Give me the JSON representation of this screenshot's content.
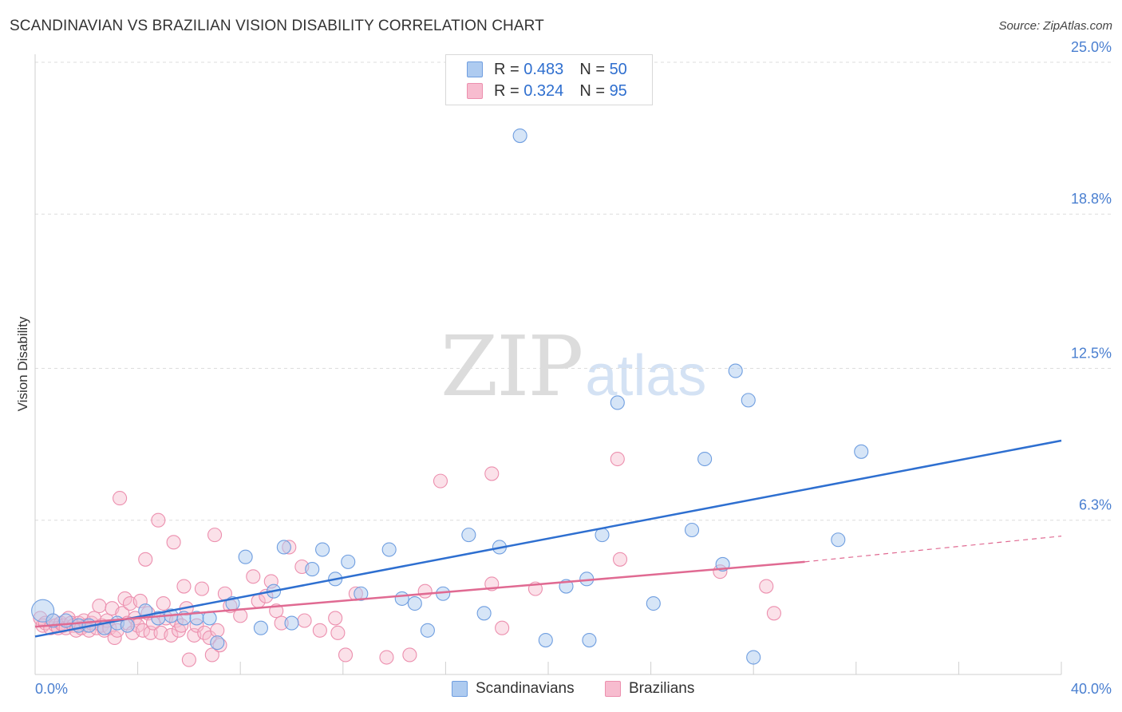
{
  "header": {
    "title": "SCANDINAVIAN VS BRAZILIAN VISION DISABILITY CORRELATION CHART",
    "source": "Source: ZipAtlas.com"
  },
  "watermark": {
    "zip": "ZIP",
    "atlas": "atlas"
  },
  "legend": {
    "rows": [
      {
        "r_label": "R =",
        "r_value": "0.483",
        "n_label": "N =",
        "n_value": "50"
      },
      {
        "r_label": "R =",
        "r_value": "0.324",
        "n_label": "N =",
        "n_value": "95"
      }
    ]
  },
  "bottom_legend": {
    "scandinavians": "Scandinavians",
    "brazilians": "Brazilians"
  },
  "colors": {
    "scandinavian_fill": "#aecbf0",
    "scandinavian_stroke": "#6f9ee0",
    "scandinavian_line": "#2e6fd0",
    "brazilian_fill": "#f7bccf",
    "brazilian_stroke": "#ec8fae",
    "brazilian_line": "#e06a92",
    "tick_text": "#4a7fd0"
  },
  "chart_data": {
    "type": "scatter",
    "title": "SCANDINAVIAN VS BRAZILIAN VISION DISABILITY CORRELATION CHART",
    "xlabel": "",
    "ylabel": "Vision Disability",
    "xlim": [
      0,
      40
    ],
    "ylim": [
      0,
      25
    ],
    "x_tick_labels": [
      "0.0%",
      "40.0%"
    ],
    "y_ticks": [
      {
        "value": 6.3,
        "label": "6.3%"
      },
      {
        "value": 12.5,
        "label": "12.5%"
      },
      {
        "value": 18.8,
        "label": "18.8%"
      },
      {
        "value": 25.0,
        "label": "25.0%"
      }
    ],
    "series": [
      {
        "name": "Scandinavians",
        "r": 0.483,
        "n": 50,
        "trend": {
          "x": [
            0,
            40
          ],
          "y": [
            1.55,
            9.55
          ]
        },
        "points": [
          [
            0.3,
            2.6
          ],
          [
            0.7,
            2.2
          ],
          [
            1.2,
            2.2
          ],
          [
            1.7,
            2.0
          ],
          [
            2.1,
            2.0
          ],
          [
            2.7,
            1.9
          ],
          [
            3.2,
            2.1
          ],
          [
            3.6,
            2.0
          ],
          [
            4.3,
            2.6
          ],
          [
            4.8,
            2.3
          ],
          [
            5.3,
            2.4
          ],
          [
            5.8,
            2.3
          ],
          [
            6.3,
            2.3
          ],
          [
            6.8,
            2.3
          ],
          [
            7.1,
            1.3
          ],
          [
            7.7,
            2.9
          ],
          [
            8.2,
            4.8
          ],
          [
            8.8,
            1.9
          ],
          [
            9.3,
            3.4
          ],
          [
            9.7,
            5.2
          ],
          [
            10.0,
            2.1
          ],
          [
            10.8,
            4.3
          ],
          [
            11.2,
            5.1
          ],
          [
            11.7,
            3.9
          ],
          [
            12.2,
            4.6
          ],
          [
            12.7,
            3.3
          ],
          [
            13.8,
            5.1
          ],
          [
            14.3,
            3.1
          ],
          [
            14.8,
            2.9
          ],
          [
            15.3,
            1.8
          ],
          [
            15.9,
            3.3
          ],
          [
            16.9,
            5.7
          ],
          [
            17.5,
            2.5
          ],
          [
            18.1,
            5.2
          ],
          [
            18.9,
            22.0
          ],
          [
            19.9,
            1.4
          ],
          [
            20.7,
            3.6
          ],
          [
            21.5,
            3.9
          ],
          [
            21.6,
            1.4
          ],
          [
            22.1,
            5.7
          ],
          [
            22.7,
            11.1
          ],
          [
            24.1,
            2.9
          ],
          [
            25.6,
            5.9
          ],
          [
            26.1,
            8.8
          ],
          [
            26.8,
            4.5
          ],
          [
            27.3,
            12.4
          ],
          [
            27.8,
            11.2
          ],
          [
            28.0,
            0.7
          ],
          [
            31.3,
            5.5
          ],
          [
            32.2,
            9.1
          ]
        ]
      },
      {
        "name": "Brazilians",
        "r": 0.324,
        "n": 95,
        "trend": {
          "x": [
            0,
            30
          ],
          "y": [
            1.95,
            4.6
          ]
        },
        "trend_dashed": {
          "x": [
            30,
            40
          ],
          "y": [
            4.6,
            5.65
          ]
        },
        "points": [
          [
            0.2,
            2.3
          ],
          [
            0.3,
            2.0
          ],
          [
            0.4,
            2.1
          ],
          [
            0.6,
            1.9
          ],
          [
            0.7,
            2.2
          ],
          [
            0.8,
            2.0
          ],
          [
            0.9,
            1.9
          ],
          [
            1.0,
            2.1
          ],
          [
            1.1,
            2.0
          ],
          [
            1.2,
            1.9
          ],
          [
            1.3,
            2.3
          ],
          [
            1.4,
            2.1
          ],
          [
            1.5,
            2.0
          ],
          [
            1.6,
            1.8
          ],
          [
            1.7,
            2.1
          ],
          [
            1.8,
            1.9
          ],
          [
            1.9,
            2.2
          ],
          [
            2.0,
            2.0
          ],
          [
            2.1,
            1.8
          ],
          [
            2.2,
            2.1
          ],
          [
            2.3,
            2.3
          ],
          [
            2.4,
            1.9
          ],
          [
            2.5,
            2.8
          ],
          [
            2.6,
            2.0
          ],
          [
            2.7,
            1.8
          ],
          [
            2.8,
            2.2
          ],
          [
            2.9,
            1.9
          ],
          [
            3.0,
            2.7
          ],
          [
            3.1,
            1.5
          ],
          [
            3.2,
            1.8
          ],
          [
            3.3,
            7.2
          ],
          [
            3.4,
            2.5
          ],
          [
            3.5,
            3.1
          ],
          [
            3.6,
            2.1
          ],
          [
            3.7,
            2.9
          ],
          [
            3.8,
            1.7
          ],
          [
            3.9,
            2.3
          ],
          [
            4.0,
            2.0
          ],
          [
            4.1,
            3.0
          ],
          [
            4.2,
            1.8
          ],
          [
            4.3,
            4.7
          ],
          [
            4.4,
            2.5
          ],
          [
            4.5,
            1.7
          ],
          [
            4.6,
            2.1
          ],
          [
            4.8,
            6.3
          ],
          [
            4.9,
            1.7
          ],
          [
            5.0,
            2.9
          ],
          [
            5.1,
            2.3
          ],
          [
            5.3,
            1.6
          ],
          [
            5.4,
            5.4
          ],
          [
            5.5,
            2.2
          ],
          [
            5.6,
            1.8
          ],
          [
            5.7,
            2.0
          ],
          [
            5.8,
            3.6
          ],
          [
            5.9,
            2.7
          ],
          [
            6.0,
            0.6
          ],
          [
            6.2,
            1.6
          ],
          [
            6.3,
            2.0
          ],
          [
            6.5,
            3.5
          ],
          [
            6.6,
            1.7
          ],
          [
            6.8,
            1.5
          ],
          [
            6.9,
            0.8
          ],
          [
            7.0,
            5.7
          ],
          [
            7.1,
            1.8
          ],
          [
            7.2,
            1.2
          ],
          [
            7.4,
            3.3
          ],
          [
            7.6,
            2.8
          ],
          [
            8.0,
            2.4
          ],
          [
            8.5,
            4.0
          ],
          [
            8.7,
            3.0
          ],
          [
            9.0,
            3.2
          ],
          [
            9.2,
            3.8
          ],
          [
            9.4,
            2.6
          ],
          [
            9.6,
            2.1
          ],
          [
            9.9,
            5.2
          ],
          [
            10.4,
            4.4
          ],
          [
            10.5,
            2.2
          ],
          [
            11.1,
            1.8
          ],
          [
            11.7,
            2.3
          ],
          [
            11.8,
            1.7
          ],
          [
            12.1,
            0.8
          ],
          [
            12.5,
            3.3
          ],
          [
            13.7,
            0.7
          ],
          [
            14.6,
            0.8
          ],
          [
            15.2,
            3.4
          ],
          [
            15.8,
            7.9
          ],
          [
            17.8,
            8.2
          ],
          [
            17.8,
            3.7
          ],
          [
            18.2,
            1.9
          ],
          [
            19.5,
            3.5
          ],
          [
            22.7,
            8.8
          ],
          [
            22.8,
            4.7
          ],
          [
            26.7,
            4.2
          ],
          [
            28.5,
            3.6
          ],
          [
            28.8,
            2.5
          ]
        ]
      }
    ]
  }
}
